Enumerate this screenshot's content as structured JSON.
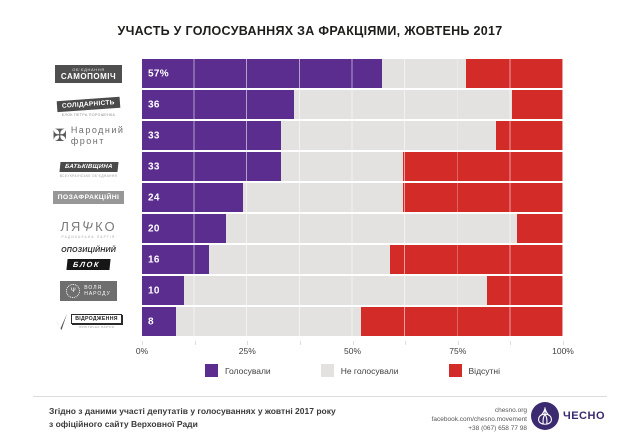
{
  "title": "УЧАСТЬ У ГОЛОСУВАННЯХ ЗА ФРАКЦІЯМИ, ЖОВТЕНЬ 2017",
  "colors": {
    "voted": "#5b2d8e",
    "not_voted": "#e3e2e0",
    "absent": "#d22b28",
    "brand_purple": "#3b2a6f"
  },
  "axis": {
    "ticks": [
      {
        "pos": 0,
        "label": "0%"
      },
      {
        "pos": 25,
        "label": "25%"
      },
      {
        "pos": 50,
        "label": "50%"
      },
      {
        "pos": 75,
        "label": "75%"
      },
      {
        "pos": 100,
        "label": "100%"
      }
    ]
  },
  "factions": [
    {
      "name": "Самопоміч",
      "logo": {
        "top": "ОБ’ЄДНАННЯ",
        "main": "САМОПОМІЧ"
      }
    },
    {
      "name": "Солідарність",
      "logo": {
        "main": "СОЛІДАРНІСТЬ",
        "sub": "БЛОК ПЕТРА ПОРОШЕНКА"
      }
    },
    {
      "name": "Народний фронт",
      "logo": {
        "line1": "Народний",
        "line2": "фронт",
        "cross": "✠"
      }
    },
    {
      "name": "Батьківщина",
      "logo": {
        "main": "БАТЬКІВЩИНА",
        "sub": "ВСЕУКРАЇНСЬКЕ ОБ’ЄДНАННЯ"
      }
    },
    {
      "name": "Позафракційні",
      "logo": {
        "main": "ПОЗАФРАКЦІЙНІ"
      }
    },
    {
      "name": "Ляшко",
      "logo": {
        "left": "ЛЯ",
        "fork": "Ψ",
        "right": "КО",
        "sub": "РАДИКАЛЬНА ПАРТІЯ"
      }
    },
    {
      "name": "Опозиційний блок",
      "logo": {
        "line1": "ОПОЗИЦІЙНИЙ",
        "line2": "БЛОК"
      }
    },
    {
      "name": "Воля народу",
      "logo": {
        "emb": "Ψ",
        "line1": "ВОЛЯ",
        "line2": "НАРОДУ"
      }
    },
    {
      "name": "Відродження",
      "logo": {
        "main": "ВІДРОДЖЕННЯ",
        "sub": "ПОЛІТИЧНА ПАРТІЯ"
      }
    }
  ],
  "chart_data": {
    "type": "bar",
    "orientation": "horizontal",
    "stacked": true,
    "title": "УЧАСТЬ У ГОЛОСУВАННЯХ ЗА ФРАКЦІЯМИ, ЖОВТЕНЬ 2017",
    "categories": [
      "Самопоміч",
      "Солідарність",
      "Народний фронт",
      "Батьківщина",
      "Позафракційні",
      "Ляшко",
      "Опозиційний блок",
      "Воля народу",
      "Відродження"
    ],
    "series": [
      {
        "name": "Голосували",
        "color": "#5b2d8e",
        "values": [
          57,
          36,
          33,
          33,
          24,
          20,
          16,
          10,
          8
        ]
      },
      {
        "name": "Не голосували",
        "color": "#e3e2e0",
        "values": [
          20,
          52,
          51,
          29,
          38,
          69,
          43,
          72,
          44
        ]
      },
      {
        "name": "Відсутні",
        "color": "#d22b28",
        "values": [
          23,
          12,
          16,
          38,
          38,
          11,
          41,
          18,
          48
        ]
      }
    ],
    "bar_labels": [
      "57%",
      "36",
      "33",
      "33",
      "24",
      "20",
      "16",
      "10",
      "8"
    ],
    "xlim": [
      0,
      100
    ],
    "gridline_step_percent": 12.5,
    "legend_position": "bottom"
  },
  "footer": {
    "source_line1": "Згідно з даними участі депутатів у голосуваннях у жовтні 2017 року",
    "source_line2": "з офіційного сайту Верховної Ради",
    "website": "chesno.org",
    "facebook": "facebook.com/chesno.movement",
    "phone": "+38 (067) 658 77 98",
    "brand": "ЧЕСНО"
  }
}
